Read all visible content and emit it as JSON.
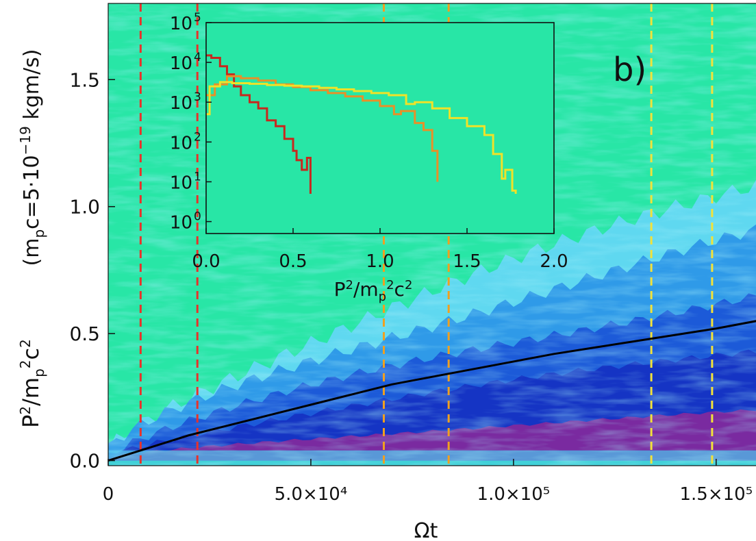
{
  "panel_label": "b)",
  "main": {
    "xlabel": "Ωt",
    "ylabel_left": "P²/m_p²c²",
    "ylabel_right": "(m_pc=5·10⁻¹⁹ kgm/s)",
    "xlim": [
      0,
      160000
    ],
    "ylim": [
      -0.02,
      1.8
    ],
    "x_ticks": [
      {
        "value": 0,
        "label": "0"
      },
      {
        "value": 50000,
        "label": "5.0×10⁴"
      },
      {
        "value": 100000,
        "label": "1.0×10⁵"
      },
      {
        "value": 150000,
        "label": "1.5×10⁵"
      }
    ],
    "y_ticks": [
      {
        "value": 0.0,
        "label": "0.0"
      },
      {
        "value": 0.5,
        "label": "0.5"
      },
      {
        "value": 1.0,
        "label": "1.0"
      },
      {
        "value": 1.5,
        "label": "1.5"
      }
    ],
    "background_color": "#28e6a6",
    "heatmap_colors": [
      "#5fd8f0",
      "#2f9ae8",
      "#1c5ad8",
      "#1534c4",
      "#7a2aa0"
    ],
    "vlines": [
      {
        "x": 8000,
        "color": "#e8322a"
      },
      {
        "x": 22000,
        "color": "#e8322a"
      },
      {
        "x": 68000,
        "color": "#f0a020"
      },
      {
        "x": 84000,
        "color": "#f0a020"
      },
      {
        "x": 134000,
        "color": "#f2e23a"
      },
      {
        "x": 149000,
        "color": "#f2e23a"
      }
    ]
  },
  "chart_data": [
    {
      "type": "heatmap",
      "title": "",
      "xlabel": "Ωt",
      "ylabel": "P²/m_p²c²  (m_pc=5·10⁻¹⁹ kgm/s)",
      "series": [
        {
          "color": "#000000",
          "x": [
            0,
            10000,
            20000,
            30000,
            40000,
            50000,
            60000,
            70000,
            80000,
            90000,
            100000,
            110000,
            120000,
            130000,
            140000,
            150000,
            160000
          ],
          "y": [
            0.0,
            0.05,
            0.1,
            0.14,
            0.18,
            0.22,
            0.26,
            0.3,
            0.33,
            0.36,
            0.39,
            0.42,
            0.445,
            0.47,
            0.495,
            0.52,
            0.55
          ]
        }
      ]
    },
    {
      "type": "line",
      "title": "",
      "xlabel": "P²/m_p²c²",
      "ylabel": "",
      "xlim": [
        0,
        2.0
      ],
      "ylim_log10": [
        -0.3,
        5.0
      ],
      "y_scale": "log",
      "x_ticks": [
        {
          "value": 0.0,
          "label": "0.0"
        },
        {
          "value": 0.5,
          "label": "0.5"
        },
        {
          "value": 1.0,
          "label": "1.0"
        },
        {
          "value": 1.5,
          "label": "1.5"
        },
        {
          "value": 2.0,
          "label": "2.0"
        }
      ],
      "y_ticks": [
        {
          "exp": 0,
          "base": "10",
          "sup": "0"
        },
        {
          "exp": 1,
          "base": "10",
          "sup": "1"
        },
        {
          "exp": 2,
          "base": "10",
          "sup": "2"
        },
        {
          "exp": 3,
          "base": "10",
          "sup": "3"
        },
        {
          "exp": 4,
          "base": "10",
          "sup": "4"
        },
        {
          "exp": 5,
          "base": "10",
          "sup": "5"
        }
      ],
      "series": [
        {
          "color": "#c8281e",
          "x": [
            0.0,
            0.03,
            0.08,
            0.12,
            0.16,
            0.2,
            0.25,
            0.3,
            0.35,
            0.4,
            0.45,
            0.5,
            0.52,
            0.55,
            0.58,
            0.6,
            0.6
          ],
          "y": [
            15000,
            13000,
            8000,
            5000,
            2500,
            1500,
            1000,
            700,
            350,
            250,
            120,
            60,
            35,
            20,
            40,
            6,
            5
          ]
        },
        {
          "color": "#e89028",
          "x": [
            0.0,
            0.05,
            0.12,
            0.2,
            0.3,
            0.4,
            0.5,
            0.6,
            0.7,
            0.8,
            0.9,
            1.0,
            1.08,
            1.12,
            1.2,
            1.25,
            1.3,
            1.33
          ],
          "y": [
            1500,
            2800,
            4500,
            4000,
            3500,
            2800,
            2400,
            2000,
            1700,
            1400,
            1100,
            800,
            500,
            600,
            300,
            200,
            60,
            10
          ]
        },
        {
          "color": "#f0e228",
          "x": [
            0.0,
            0.02,
            0.08,
            0.15,
            0.25,
            0.35,
            0.45,
            0.55,
            0.65,
            0.75,
            0.85,
            0.95,
            1.05,
            1.15,
            1.2,
            1.3,
            1.4,
            1.5,
            1.6,
            1.65,
            1.7,
            1.72,
            1.76,
            1.78
          ],
          "y": [
            500,
            2500,
            3200,
            3000,
            2900,
            2700,
            2600,
            2500,
            2300,
            2100,
            1900,
            1700,
            1500,
            900,
            1000,
            700,
            400,
            250,
            150,
            50,
            12,
            20,
            6,
            5
          ]
        }
      ]
    }
  ]
}
